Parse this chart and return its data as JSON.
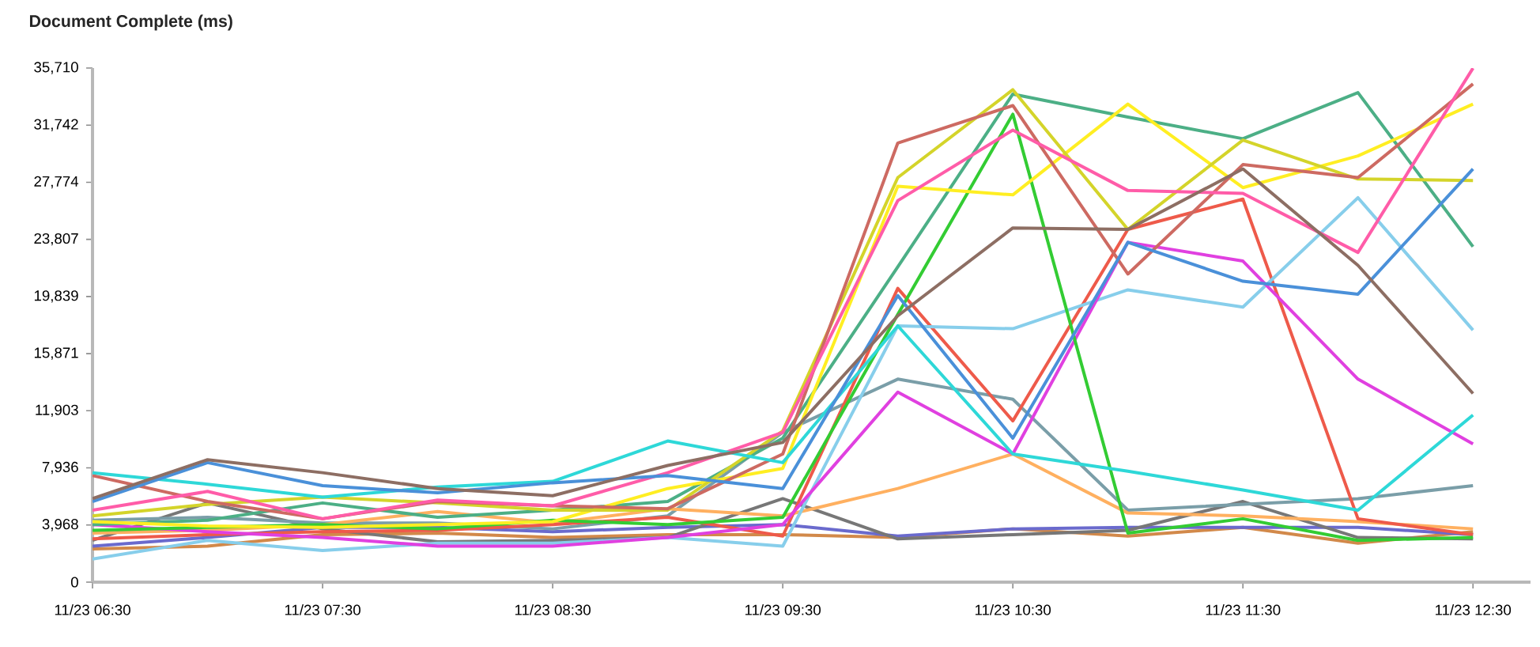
{
  "chart_data": {
    "type": "line",
    "title": "Document Complete (ms)",
    "marker": "none",
    "line_style": "solid",
    "categories": [
      "11/23 06:30",
      null,
      "11/23 07:30",
      null,
      "11/23 08:30",
      null,
      "11/23 09:30",
      null,
      "11/23 10:30",
      null,
      "11/23 11:30",
      null,
      "11/23 12:30"
    ],
    "ylim": [
      0,
      35710
    ],
    "yticks": [
      0,
      {
        "value": 3968,
        "label": "3,968"
      },
      {
        "value": 7936,
        "label": "7,936"
      },
      {
        "value": 11903,
        "label": "11,903"
      },
      {
        "value": 15871,
        "label": "15,871"
      },
      {
        "value": 19839,
        "label": "19,839"
      },
      {
        "value": 23807,
        "label": "23,807"
      },
      {
        "value": 27774,
        "label": "27,774"
      },
      {
        "value": 31742,
        "label": "31,742"
      },
      {
        "value": 35710,
        "label": "35,710"
      }
    ],
    "series": [
      {
        "color": "#d2894a",
        "values": [
          2300,
          2500,
          3300,
          3400,
          3100,
          3300,
          3300,
          3100,
          3700,
          3200,
          3800,
          2700,
          3500
        ]
      },
      {
        "color": "#6a6acd",
        "values": [
          2500,
          3100,
          3800,
          3800,
          3500,
          3800,
          4000,
          3200,
          3700,
          3800,
          3800,
          3800,
          3300
        ]
      },
      {
        "color": "#777777",
        "values": [
          2900,
          5500,
          3700,
          2800,
          2900,
          3100,
          5800,
          3000,
          3300,
          3600,
          5600,
          3100,
          3000
        ]
      },
      {
        "color": "#7a9ea8",
        "values": [
          4300,
          4500,
          4100,
          4100,
          3700,
          4600,
          10400,
          14100,
          12700,
          5000,
          5400,
          5800,
          6700
        ]
      },
      {
        "color": "#ffb060",
        "values": [
          3400,
          3600,
          4000,
          4900,
          4100,
          5100,
          4600,
          6500,
          8900,
          4800,
          4600,
          4200,
          3700
        ]
      },
      {
        "color": "#ee5a4a",
        "values": [
          3000,
          3300,
          3500,
          3600,
          4000,
          4500,
          3200,
          20400,
          11200,
          24500,
          26600,
          4400,
          3300
        ]
      },
      {
        "color": "#87ceeb",
        "values": [
          1600,
          2900,
          2200,
          2700,
          2700,
          3100,
          2500,
          17800,
          17600,
          20300,
          19100,
          26700,
          17500
        ]
      },
      {
        "color": "#e040e0",
        "values": [
          4000,
          3500,
          3100,
          2500,
          2500,
          3100,
          4000,
          13200,
          8900,
          23600,
          22300,
          14100,
          9600
        ]
      },
      {
        "color": "#33cc33",
        "values": [
          3600,
          3800,
          4000,
          3700,
          4300,
          4000,
          4500,
          18600,
          32500,
          3400,
          4400,
          2900,
          3100
        ]
      },
      {
        "color": "#4caf86",
        "values": [
          4000,
          4300,
          5500,
          4500,
          5000,
          5600,
          10000,
          21900,
          33900,
          32300,
          30800,
          34000,
          23300
        ]
      },
      {
        "color": "#ffee22",
        "values": [
          4200,
          3900,
          3800,
          4000,
          4200,
          6500,
          7900,
          27500,
          26900,
          33200,
          27400,
          29600,
          33200
        ]
      },
      {
        "color": "#d4d42a",
        "values": [
          4600,
          5400,
          5900,
          5500,
          5000,
          5000,
          10500,
          28100,
          34200,
          24500,
          30700,
          28000,
          27900
        ]
      },
      {
        "color": "#cd6a62",
        "values": [
          7400,
          5600,
          4400,
          5600,
          5300,
          5100,
          8900,
          30500,
          33100,
          21400,
          29000,
          28100,
          34600
        ]
      },
      {
        "color": "#ff5ca8",
        "values": [
          5000,
          6300,
          4400,
          5700,
          5300,
          7600,
          10400,
          26500,
          31400,
          27200,
          27000,
          22900,
          35700
        ]
      },
      {
        "color": "#2ed8d8",
        "values": [
          7600,
          6800,
          5900,
          6600,
          7000,
          9800,
          8300,
          17800,
          8900,
          7700,
          6400,
          5000,
          11600
        ]
      },
      {
        "color": "#4a90d9",
        "values": [
          5600,
          8300,
          6700,
          6200,
          6900,
          7400,
          6500,
          19900,
          10000,
          23600,
          20900,
          20000,
          28700
        ]
      },
      {
        "color": "#8d6e63",
        "values": [
          5800,
          8500,
          7600,
          6500,
          6000,
          8100,
          9700,
          18500,
          24600,
          24500,
          28700,
          22000,
          13100
        ]
      }
    ]
  }
}
